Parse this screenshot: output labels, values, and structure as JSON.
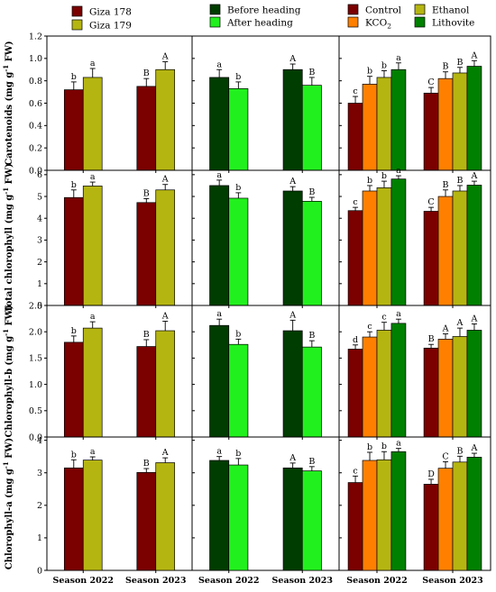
{
  "legends": {
    "groupA": [
      {
        "name": "Giza 178",
        "color": "#7b0000"
      },
      {
        "name": "Giza 179",
        "color": "#b5b512"
      }
    ],
    "groupB": [
      {
        "name": "Before heading",
        "color": "#003d00"
      },
      {
        "name": "After heading",
        "color": "#22f01e"
      }
    ],
    "groupC": [
      {
        "name": "Control",
        "color": "#7b0000"
      },
      {
        "name": "KCO",
        "sub": "2",
        "color": "#ff8000"
      },
      {
        "name": "Ethanol",
        "color": "#b5b512"
      },
      {
        "name": "Lithovite",
        "color": "#008000"
      }
    ]
  },
  "chart_data": [
    {
      "type": "bar",
      "row": 0,
      "ylabel": {
        "main": "Carotenoids (mg g",
        "sup": "-1",
        "end": " FW)"
      },
      "ylim": [
        0,
        1.2
      ],
      "yticks": [
        "0.0",
        "0.2",
        "0.4",
        "0.6",
        "0.8",
        "1.0",
        "1.2"
      ],
      "panels": [
        {
          "categories": [
            "Season 2022",
            "Season 2023"
          ],
          "series": [
            {
              "name": "Giza 178",
              "values": [
                0.72,
                0.75
              ],
              "errors": [
                0.07,
                0.07
              ],
              "letters": [
                "b",
                "B"
              ]
            },
            {
              "name": "Giza 179",
              "values": [
                0.83,
                0.9
              ],
              "errors": [
                0.08,
                0.07
              ],
              "letters": [
                "a",
                "A"
              ]
            }
          ]
        },
        {
          "categories": [
            "Season 2022",
            "Season 2023"
          ],
          "series": [
            {
              "name": "Before heading",
              "values": [
                0.83,
                0.9
              ],
              "errors": [
                0.07,
                0.05
              ],
              "letters": [
                "a",
                "A"
              ]
            },
            {
              "name": "After heading",
              "values": [
                0.73,
                0.76
              ],
              "errors": [
                0.06,
                0.07
              ],
              "letters": [
                "b",
                "B"
              ]
            }
          ]
        },
        {
          "categories": [
            "Season 2022",
            "Season 2023"
          ],
          "series": [
            {
              "name": "Control",
              "values": [
                0.6,
                0.69
              ],
              "errors": [
                0.06,
                0.05
              ],
              "letters": [
                "c",
                "C"
              ]
            },
            {
              "name": "KCO2",
              "values": [
                0.77,
                0.82
              ],
              "errors": [
                0.07,
                0.06
              ],
              "letters": [
                "b",
                "B"
              ]
            },
            {
              "name": "Ethanol",
              "values": [
                0.83,
                0.87
              ],
              "errors": [
                0.06,
                0.05
              ],
              "letters": [
                "b",
                "B"
              ]
            },
            {
              "name": "Lithovite",
              "values": [
                0.9,
                0.93
              ],
              "errors": [
                0.06,
                0.05
              ],
              "letters": [
                "a",
                "A"
              ]
            }
          ]
        }
      ]
    },
    {
      "type": "bar",
      "row": 1,
      "ylabel": {
        "main": "Total chlorophyll (mg g",
        "sup": "-1",
        "end": " FW)"
      },
      "ylim": [
        0,
        6.2
      ],
      "yticks": [
        "0",
        "1",
        "2",
        "3",
        "4",
        "5",
        "6"
      ],
      "panels": [
        {
          "categories": [
            "Season 2022",
            "Season 2023"
          ],
          "series": [
            {
              "name": "Giza 178",
              "values": [
                4.95,
                4.72
              ],
              "errors": [
                0.35,
                0.18
              ],
              "letters": [
                "b",
                "B"
              ]
            },
            {
              "name": "Giza 179",
              "values": [
                5.48,
                5.3
              ],
              "errors": [
                0.18,
                0.25
              ],
              "letters": [
                "a",
                "A"
              ]
            }
          ]
        },
        {
          "categories": [
            "Season 2022",
            "Season 2023"
          ],
          "series": [
            {
              "name": "Before heading",
              "values": [
                5.5,
                5.25
              ],
              "errors": [
                0.25,
                0.2
              ],
              "letters": [
                "a",
                "A"
              ]
            },
            {
              "name": "After heading",
              "values": [
                4.92,
                4.78
              ],
              "errors": [
                0.25,
                0.18
              ],
              "letters": [
                "b",
                "B"
              ]
            }
          ]
        },
        {
          "categories": [
            "Season 2022",
            "Season 2023"
          ],
          "series": [
            {
              "name": "Control",
              "values": [
                4.35,
                4.32
              ],
              "errors": [
                0.15,
                0.18
              ],
              "letters": [
                "c",
                "C"
              ]
            },
            {
              "name": "KCO2",
              "values": [
                5.25,
                5.0
              ],
              "errors": [
                0.25,
                0.3
              ],
              "letters": [
                "b",
                "B"
              ]
            },
            {
              "name": "Ethanol",
              "values": [
                5.4,
                5.25
              ],
              "errors": [
                0.3,
                0.25
              ],
              "letters": [
                "b",
                "B"
              ]
            },
            {
              "name": "Lithovite",
              "values": [
                5.8,
                5.52
              ],
              "errors": [
                0.15,
                0.18
              ],
              "letters": [
                "a",
                "A"
              ]
            }
          ]
        }
      ]
    },
    {
      "type": "bar",
      "row": 2,
      "ylabel": {
        "main": "Chlorophyll-b (mg g",
        "sup": "-1",
        "end": " FW)"
      },
      "ylim": [
        0,
        2.5
      ],
      "yticks": [
        "0.0",
        "0.5",
        "1.0",
        "1.5",
        "2.0",
        "2.5"
      ],
      "panels": [
        {
          "categories": [
            "Season 2022",
            "Season 2023"
          ],
          "series": [
            {
              "name": "Giza 178",
              "values": [
                1.8,
                1.72
              ],
              "errors": [
                0.12,
                0.13
              ],
              "letters": [
                "b",
                "B"
              ]
            },
            {
              "name": "Giza 179",
              "values": [
                2.07,
                2.02
              ],
              "errors": [
                0.12,
                0.18
              ],
              "letters": [
                "a",
                "A"
              ]
            }
          ]
        },
        {
          "categories": [
            "Season 2022",
            "Season 2023"
          ],
          "series": [
            {
              "name": "Before heading",
              "values": [
                2.12,
                2.02
              ],
              "errors": [
                0.12,
                0.2
              ],
              "letters": [
                "a",
                "A"
              ]
            },
            {
              "name": "After heading",
              "values": [
                1.76,
                1.71
              ],
              "errors": [
                0.1,
                0.12
              ],
              "letters": [
                "b",
                "B"
              ]
            }
          ]
        },
        {
          "categories": [
            "Season 2022",
            "Season 2023"
          ],
          "series": [
            {
              "name": "Control",
              "values": [
                1.67,
                1.69
              ],
              "errors": [
                0.08,
                0.07
              ],
              "letters": [
                "d",
                "B"
              ]
            },
            {
              "name": "KCO2",
              "values": [
                1.9,
                1.86
              ],
              "errors": [
                0.1,
                0.1
              ],
              "letters": [
                "c",
                "A"
              ]
            },
            {
              "name": "Ethanol",
              "values": [
                2.03,
                1.91
              ],
              "errors": [
                0.15,
                0.16
              ],
              "letters": [
                "c",
                "A"
              ]
            },
            {
              "name": "Lithovite",
              "values": [
                2.16,
                2.03
              ],
              "errors": [
                0.08,
                0.12
              ],
              "letters": [
                "a",
                "A"
              ]
            }
          ]
        }
      ]
    },
    {
      "type": "bar",
      "row": 3,
      "ylabel": {
        "main": "Chlorophyll-a (mg g",
        "sup": "-1",
        "end": " FW)"
      },
      "ylim": [
        0,
        4.1
      ],
      "yticks": [
        "0",
        "1",
        "2",
        "3",
        "4"
      ],
      "panels": [
        {
          "categories": [
            "Season 2022",
            "Season 2023"
          ],
          "series": [
            {
              "name": "Giza 178",
              "values": [
                3.15,
                3.01
              ],
              "errors": [
                0.25,
                0.12
              ],
              "letters": [
                "b",
                "B"
              ]
            },
            {
              "name": "Giza 179",
              "values": [
                3.39,
                3.31
              ],
              "errors": [
                0.1,
                0.15
              ],
              "letters": [
                "a",
                "A"
              ]
            }
          ]
        },
        {
          "categories": [
            "Season 2022",
            "Season 2023"
          ],
          "series": [
            {
              "name": "Before heading",
              "values": [
                3.38,
                3.15
              ],
              "errors": [
                0.12,
                0.15
              ],
              "letters": [
                "a",
                "A"
              ]
            },
            {
              "name": "After heading",
              "values": [
                3.24,
                3.06
              ],
              "errors": [
                0.2,
                0.13
              ],
              "letters": [
                "b",
                "B"
              ]
            }
          ]
        },
        {
          "categories": [
            "Season 2022",
            "Season 2023"
          ],
          "series": [
            {
              "name": "Control",
              "values": [
                2.7,
                2.65
              ],
              "errors": [
                0.2,
                0.15
              ],
              "letters": [
                "c",
                "D"
              ]
            },
            {
              "name": "KCO2",
              "values": [
                3.38,
                3.14
              ],
              "errors": [
                0.25,
                0.2
              ],
              "letters": [
                "b",
                "C"
              ]
            },
            {
              "name": "Ethanol",
              "values": [
                3.4,
                3.33
              ],
              "errors": [
                0.25,
                0.18
              ],
              "letters": [
                "b",
                "B"
              ]
            },
            {
              "name": "Lithovite",
              "values": [
                3.65,
                3.48
              ],
              "errors": [
                0.1,
                0.12
              ],
              "letters": [
                "a",
                "A"
              ]
            }
          ]
        }
      ]
    }
  ]
}
